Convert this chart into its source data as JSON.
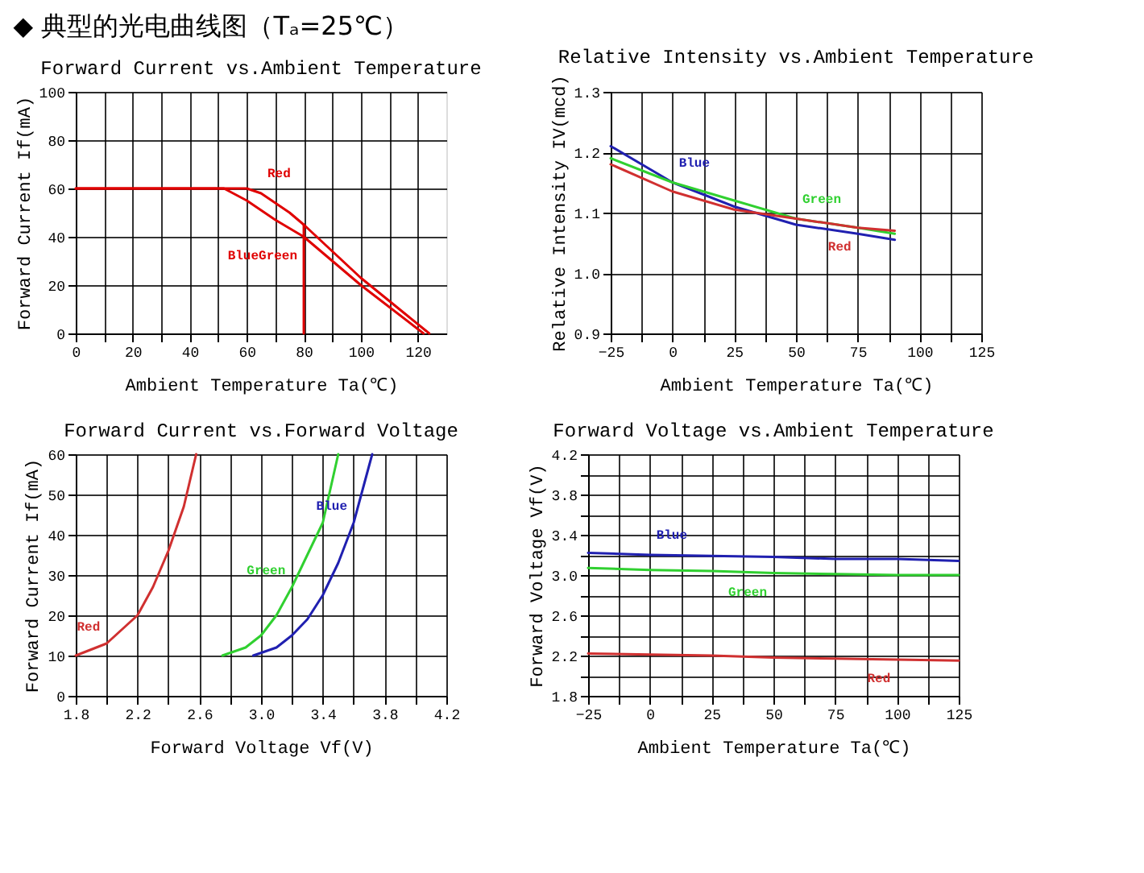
{
  "chart_data": [
    {
      "type": "line",
      "title": "Forward Current vs.Ambient Temperature",
      "annotations": [
        "◆ 典型的光电曲线图（Tₐ=25℃）"
      ],
      "xlabel": "Ambient Temperature Ta(℃)",
      "ylabel": "Forward Current If(mA)",
      "xlim": [
        0,
        130
      ],
      "ylim": [
        0,
        100
      ],
      "xticks": [
        0,
        {
          "value": 10,
          "label": null
        },
        20,
        {
          "value": 30,
          "label": null
        },
        40,
        {
          "value": 50,
          "label": null
        },
        60,
        {
          "value": 70,
          "label": null
        },
        80,
        {
          "value": 90,
          "label": null
        },
        100,
        {
          "value": 110,
          "label": null
        },
        120
      ],
      "yticks": [
        0,
        20,
        40,
        60,
        80,
        100
      ],
      "grid": true,
      "legend": false,
      "series": [
        {
          "name": "Red",
          "color": "#e00000",
          "x": [
            0,
            60,
            65,
            70,
            75,
            80,
            100,
            124
          ],
          "values": [
            60,
            60,
            58,
            54,
            50,
            45,
            23,
            0
          ]
        },
        {
          "name": "BlueGreen",
          "color": "#e00000",
          "x": [
            0,
            52,
            60,
            70,
            80,
            100,
            122
          ],
          "values": [
            60,
            60,
            55,
            47,
            40,
            20,
            0
          ]
        },
        {
          "color": "#e00000",
          "x": [
            80,
            80
          ],
          "values": [
            45,
            0
          ]
        }
      ]
    },
    {
      "type": "line",
      "title": "Relative Intensity vs.Ambient Temperature",
      "xlabel": "Ambient Temperature Ta(℃)",
      "ylabel": "Relative Intensity IV(mcd)",
      "xlim": [
        -25,
        125
      ],
      "ylim": [
        0.9,
        1.3
      ],
      "xticks": [
        -25,
        {
          "value": -12.5,
          "label": null
        },
        0,
        {
          "value": 12.5,
          "label": null
        },
        25,
        {
          "value": 37.5,
          "label": null
        },
        50,
        {
          "value": 62.5,
          "label": null
        },
        75,
        {
          "value": 87.5,
          "label": null
        },
        100,
        {
          "value": 112.5,
          "label": null
        },
        125
      ],
      "yticks": [
        0.9,
        {
          "value": 1.0,
          "label": "1.0"
        },
        1.1,
        1.2,
        1.3
      ],
      "grid": true,
      "legend": false,
      "series": [
        {
          "name": "Blue",
          "color": "#2020b0",
          "x": [
            -25,
            0,
            25,
            50,
            75,
            90
          ],
          "values": [
            1.21,
            1.15,
            1.11,
            1.08,
            1.065,
            1.055
          ]
        },
        {
          "name": "Green",
          "color": "#30d030",
          "x": [
            -25,
            0,
            25,
            50,
            75,
            90
          ],
          "values": [
            1.19,
            1.15,
            1.12,
            1.09,
            1.075,
            1.065
          ]
        },
        {
          "name": "Red",
          "color": "#d03030",
          "x": [
            -25,
            0,
            25,
            50,
            75,
            90
          ],
          "values": [
            1.18,
            1.135,
            1.105,
            1.09,
            1.075,
            1.07
          ]
        }
      ]
    },
    {
      "type": "line",
      "title": "Forward Current vs.Forward Voltage",
      "xlabel": "Forward Voltage Vf(V)",
      "ylabel": "Forward Current If(mA)",
      "xlim": [
        1.8,
        4.2
      ],
      "ylim": [
        0,
        60
      ],
      "xticks": [
        1.8,
        {
          "value": 2.0,
          "label": null
        },
        2.2,
        {
          "value": 2.4,
          "label": null
        },
        2.6,
        {
          "value": 2.8,
          "label": null
        },
        {
          "value": 3.0,
          "label": "3.0"
        },
        {
          "value": 3.2,
          "label": null
        },
        3.4,
        {
          "value": 3.6,
          "label": null
        },
        3.8,
        {
          "value": 4.0,
          "label": null
        },
        4.2
      ],
      "yticks": [
        0,
        10,
        20,
        30,
        40,
        50,
        60
      ],
      "grid": true,
      "legend": false,
      "series": [
        {
          "name": "Red",
          "color": "#d03030",
          "x": [
            1.8,
            2.0,
            2.2,
            2.3,
            2.4,
            2.5,
            2.58
          ],
          "values": [
            10,
            13,
            20,
            27,
            36,
            47,
            60
          ]
        },
        {
          "name": "Green",
          "color": "#30d030",
          "x": [
            2.75,
            2.9,
            3.0,
            3.1,
            3.2,
            3.3,
            3.4,
            3.5
          ],
          "values": [
            10,
            12,
            15,
            20,
            27,
            35,
            43,
            60
          ]
        },
        {
          "name": "Blue",
          "color": "#2020b0",
          "x": [
            2.95,
            3.1,
            3.2,
            3.3,
            3.4,
            3.5,
            3.6,
            3.72
          ],
          "values": [
            10,
            12,
            15,
            19,
            25,
            33,
            43,
            60
          ]
        }
      ]
    },
    {
      "type": "line",
      "title": "Forward Voltage vs.Ambient Temperature",
      "xlabel": "Ambient Temperature Ta(℃)",
      "ylabel": "Forward Voltage Vf(V)",
      "xlim": [
        -25,
        125
      ],
      "ylim": [
        1.8,
        4.2
      ],
      "xticks": [
        -25,
        {
          "value": -12.5,
          "label": null
        },
        0,
        {
          "value": 12.5,
          "label": null
        },
        25,
        {
          "value": 37.5,
          "label": null
        },
        50,
        {
          "value": 62.5,
          "label": null
        },
        75,
        {
          "value": 87.5,
          "label": null
        },
        100,
        {
          "value": 112.5,
          "label": null
        },
        125
      ],
      "yticks": [
        1.8,
        {
          "value": 2.0,
          "label": null
        },
        2.2,
        {
          "value": 2.4,
          "label": null
        },
        2.6,
        {
          "value": 2.8,
          "label": null
        },
        {
          "value": 3.0,
          "label": "3.0"
        },
        {
          "value": 3.2,
          "label": null
        },
        3.4,
        {
          "value": 3.6,
          "label": null
        },
        3.8,
        {
          "value": 4.0,
          "label": null
        },
        4.2
      ],
      "grid": true,
      "legend": false,
      "series": [
        {
          "name": "Blue",
          "color": "#2020b0",
          "x": [
            -25,
            0,
            25,
            50,
            75,
            100,
            125
          ],
          "values": [
            3.22,
            3.2,
            3.19,
            3.18,
            3.16,
            3.16,
            3.14
          ]
        },
        {
          "name": "Green",
          "color": "#30d030",
          "x": [
            -25,
            0,
            25,
            50,
            75,
            100,
            125
          ],
          "values": [
            3.07,
            3.05,
            3.04,
            3.02,
            3.01,
            3.0,
            3.0
          ]
        },
        {
          "name": "Red",
          "color": "#d03030",
          "x": [
            -25,
            0,
            25,
            50,
            75,
            100,
            125
          ],
          "values": [
            2.22,
            2.21,
            2.2,
            2.18,
            2.17,
            2.16,
            2.15
          ]
        }
      ]
    }
  ]
}
